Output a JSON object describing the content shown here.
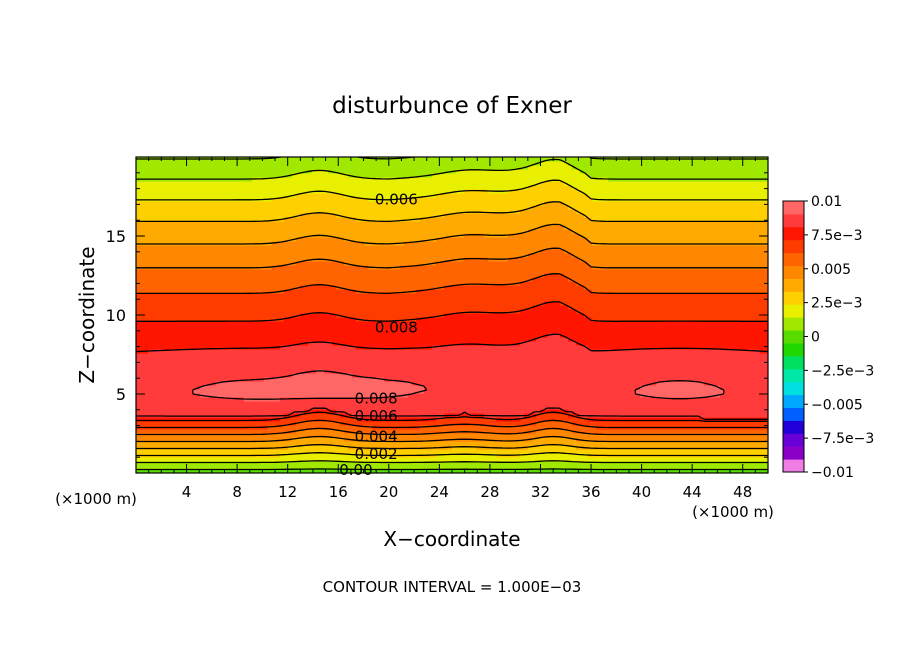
{
  "chart_data": {
    "type": "heatmap",
    "title": "disturbunce of Exner",
    "xlabel": "X−coordinate",
    "ylabel": "Z−coordinate",
    "x_unit_left": "(×1000 m)",
    "x_unit_right": "(×1000 m)",
    "footer": "CONTOUR INTERVAL = 1.000E−03",
    "xlim": [
      0,
      50
    ],
    "ylim": [
      0,
      20
    ],
    "x_ticks": [
      4,
      8,
      12,
      16,
      20,
      24,
      28,
      32,
      36,
      40,
      44,
      48
    ],
    "x_tick_labels": [
      "4",
      "8",
      "12",
      "16",
      "20",
      "24",
      "28",
      "32",
      "36",
      "40",
      "44",
      "48"
    ],
    "y_ticks": [
      5,
      10,
      15
    ],
    "y_tick_labels": [
      "5",
      "10",
      "15"
    ],
    "contour_interval": 0.001,
    "contour_labels": [
      {
        "text": "0.006",
        "x": 20.6,
        "y": 17.3
      },
      {
        "text": "0.008",
        "x": 20.6,
        "y": 9.2
      },
      {
        "text": "0.008",
        "x": 19.0,
        "y": 4.7
      },
      {
        "text": "0.006",
        "x": 19.0,
        "y": 3.6
      },
      {
        "text": "0.004",
        "x": 19.0,
        "y": 2.3
      },
      {
        "text": "0.002",
        "x": 19.0,
        "y": 1.2
      },
      {
        "text": "0.00",
        "x": 17.4,
        "y": 0.2
      }
    ],
    "colorbar": {
      "min": -0.01,
      "max": 0.01,
      "labels": [
        "0.01",
        "7.5e−3",
        "0.005",
        "2.5e−3",
        "0",
        "−2.5e−3",
        "−0.005",
        "−7.5e−3",
        "−0.01"
      ],
      "label_values": [
        0.01,
        0.0075,
        0.005,
        0.0025,
        0,
        -0.0025,
        -0.005,
        -0.0075,
        -0.01
      ],
      "colors": [
        "#ee7ee4",
        "#8b00c8",
        "#6a00d8",
        "#2000d8",
        "#0060ff",
        "#00a8ff",
        "#00e0e0",
        "#00e8a8",
        "#00e060",
        "#20d800",
        "#58dc00",
        "#a0e800",
        "#e8f000",
        "#ffd000",
        "#ffaa00",
        "#ff8800",
        "#ff6400",
        "#ff3c00",
        "#ff1500",
        "#ff3b3b",
        "#ff6666"
      ]
    }
  }
}
